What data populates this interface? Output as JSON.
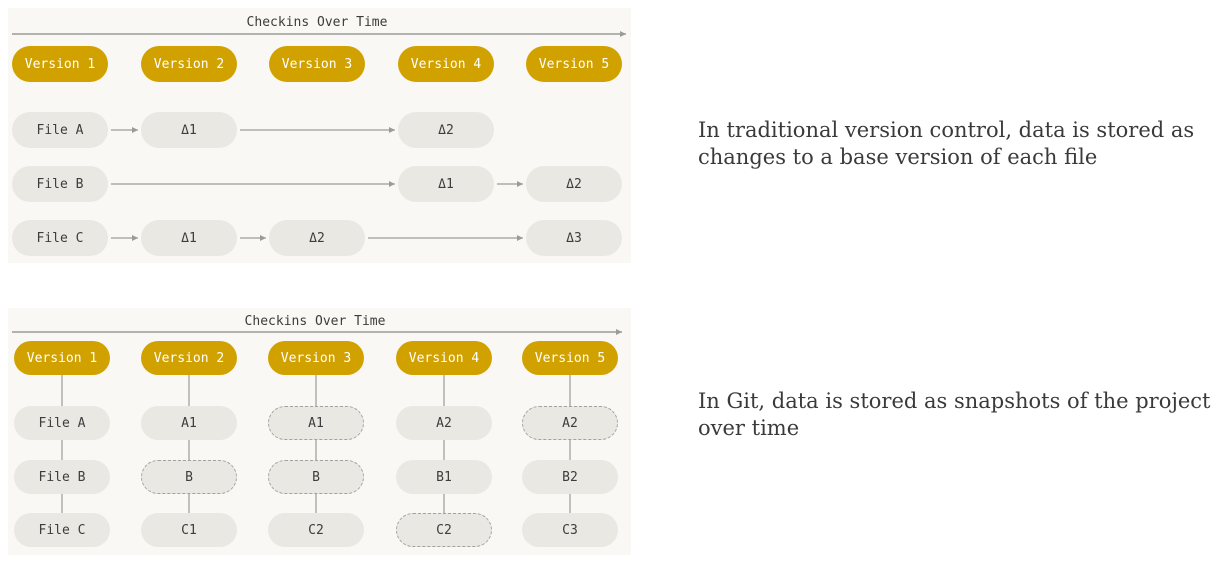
{
  "top_diagram": {
    "title": "Checkins Over Time",
    "versions": [
      "Version 1",
      "Version 2",
      "Version 3",
      "Version 4",
      "Version 5"
    ],
    "rows": [
      {
        "file": "File A",
        "cells": [
          "Δ1",
          "",
          "Δ2",
          ""
        ]
      },
      {
        "file": "File B",
        "cells": [
          "",
          "",
          "Δ1",
          "Δ2"
        ]
      },
      {
        "file": "File C",
        "cells": [
          "Δ1",
          "Δ2",
          "",
          "Δ3"
        ]
      }
    ],
    "caption": "In traditional version control, data is stored as changes to a base version of each file"
  },
  "bottom_diagram": {
    "title": "Checkins Over Time",
    "versions": [
      "Version 1",
      "Version 2",
      "Version 3",
      "Version 4",
      "Version 5"
    ],
    "rows": [
      {
        "file": "File A",
        "cells": [
          {
            "label": "A1",
            "unchanged": false
          },
          {
            "label": "A1",
            "unchanged": true
          },
          {
            "label": "A2",
            "unchanged": false
          },
          {
            "label": "A2",
            "unchanged": true
          }
        ]
      },
      {
        "file": "File B",
        "cells": [
          {
            "label": "B",
            "unchanged": true
          },
          {
            "label": "B",
            "unchanged": true
          },
          {
            "label": "B1",
            "unchanged": false
          },
          {
            "label": "B2",
            "unchanged": false
          }
        ]
      },
      {
        "file": "File C",
        "cells": [
          {
            "label": "C1",
            "unchanged": false
          },
          {
            "label": "C2",
            "unchanged": false
          },
          {
            "label": "C2",
            "unchanged": true
          },
          {
            "label": "C3",
            "unchanged": false
          }
        ]
      }
    ],
    "caption": "In Git, data is stored as snapshots of the project over time"
  },
  "colors": {
    "version_fill": "#d1a100",
    "file_fill": "#e9e8e3",
    "panel_background": "#f9f8f5",
    "line": "#9b9b97"
  }
}
